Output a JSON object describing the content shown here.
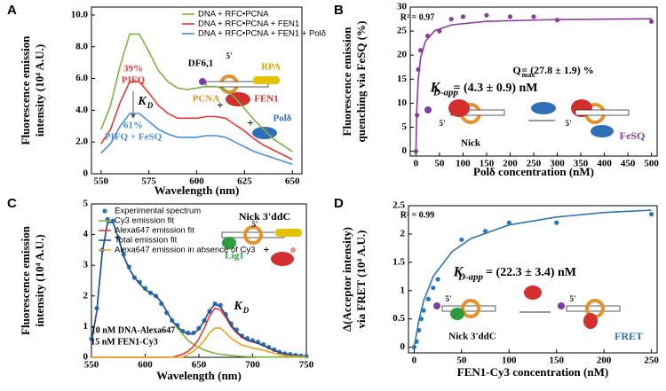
{
  "chart_data": [
    {
      "type": "line",
      "label": "A",
      "xlabel": "Wavelength (nm)",
      "ylabel": [
        "Fluorescence emission",
        "intensity (10⁴ A.U.)"
      ],
      "x": [
        550,
        555,
        560,
        565,
        570,
        575,
        580,
        585,
        590,
        595,
        600,
        605,
        610,
        615,
        620,
        625,
        630,
        635,
        640,
        645,
        650
      ],
      "series": [
        {
          "name": "DNA + RFC•PCNA",
          "color": "#7cb342",
          "mode": "line",
          "values": [
            2.8,
            4.3,
            6.8,
            8.8,
            8.8,
            7.7,
            6.5,
            5.8,
            5.4,
            5.3,
            5.4,
            5.5,
            5.5,
            5.3,
            4.8,
            4.1,
            3.4,
            2.8,
            2.2,
            1.8,
            1.4
          ]
        },
        {
          "name": "DNA + RFC•PCNA + FEN1",
          "color": "#e53935",
          "mode": "line",
          "values": [
            1.9,
            2.8,
            4.5,
            5.8,
            5.8,
            5.1,
            4.3,
            3.8,
            3.5,
            3.5,
            3.5,
            3.6,
            3.6,
            3.5,
            3.1,
            2.7,
            2.2,
            1.8,
            1.5,
            1.2,
            0.9
          ]
        },
        {
          "name": "DNA + RFC•PCNA + FEN1 + Polδ",
          "color": "#4a90d9",
          "mode": "line",
          "values": [
            1.3,
            1.9,
            3.0,
            3.8,
            3.8,
            3.3,
            2.8,
            2.5,
            2.3,
            2.3,
            2.3,
            2.4,
            2.4,
            2.3,
            2.0,
            1.7,
            1.4,
            1.2,
            1.0,
            0.8,
            0.6
          ]
        }
      ],
      "xlim": [
        545,
        655
      ],
      "xticks": [
        550,
        575,
        600,
        625,
        650
      ],
      "ylim": [
        0,
        10.5
      ],
      "yticks": [
        0,
        {
          "value": 2,
          "label": "2.0"
        },
        {
          "value": 4,
          "label": "4.0"
        },
        {
          "value": 6,
          "label": "6.0"
        },
        {
          "value": 8,
          "label": "8.0"
        },
        {
          "value": 10,
          "label": "10.0"
        }
      ],
      "legend": "upper right",
      "annotations": [
        "39%",
        "PIFQ",
        "K",
        "D",
        "61%",
        "PIFQ + FeSQ",
        "DF6,1",
        "5'",
        "RPA",
        "PCNA",
        "+",
        "FEN1",
        "+",
        "Polδ"
      ]
    },
    {
      "type": "scatter",
      "label": "B",
      "xlabel": "Polδ concentration (nM)",
      "ylabel": [
        "Fluorescence emission",
        "quenching via FeSQ (%)"
      ],
      "series": [
        {
          "color": "#8e3a9e",
          "mode": "markers",
          "x": [
            0,
            2.5,
            5,
            10,
            25,
            50,
            75,
            100,
            150,
            200,
            250,
            300,
            500
          ],
          "values": [
            0,
            7.5,
            17,
            21,
            24,
            25,
            27.5,
            28,
            28.3,
            28,
            28,
            27.3,
            27
          ]
        },
        {
          "color": "#8e3a9e",
          "mode": "line",
          "x": [
            0,
            2,
            5,
            10,
            20,
            40,
            75,
            150,
            300,
            500
          ],
          "values": [
            0,
            8.82,
            14.95,
            19.44,
            22.88,
            25.1,
            26.29,
            27.03,
            27.41,
            27.56
          ]
        }
      ],
      "xlim": [
        -12,
        512
      ],
      "xticks": [
        0,
        50,
        100,
        150,
        200,
        250,
        300,
        350,
        400,
        450,
        500
      ],
      "ylim": [
        -1,
        30
      ],
      "yticks": [
        0,
        5,
        10,
        15,
        20,
        25,
        30
      ],
      "annotations": [
        "R² = 0.97",
        "Q",
        "max",
        "= (27.8 ± 1.9) %",
        "K",
        "D-app",
        "= (4.3 ± 0.9) nM",
        "5'",
        "Nick",
        "5'",
        "FeSQ"
      ]
    },
    {
      "type": "line",
      "label": "C",
      "xlabel": "Wavelength (nm)",
      "ylabel": [
        "Fluorescence emission",
        "intensity (10⁴ A.U.)"
      ],
      "x": [
        550,
        555,
        560,
        565,
        570,
        575,
        580,
        585,
        590,
        595,
        600,
        605,
        610,
        615,
        620,
        625,
        630,
        635,
        640,
        645,
        650,
        655,
        660,
        665,
        670,
        675,
        680,
        685,
        690,
        695,
        700,
        705,
        710,
        715,
        720,
        725,
        730,
        735,
        740,
        745,
        750
      ],
      "series": [
        {
          "name": "Experimental spectrum",
          "color": "#2e75b6",
          "mode": "markers",
          "values": [
            0.6,
            1.6,
            3.5,
            4.5,
            4.45,
            3.9,
            3.35,
            2.95,
            2.6,
            2.45,
            2.25,
            2.1,
            2.0,
            1.75,
            1.45,
            1.2,
            1.05,
            0.85,
            0.8,
            0.8,
            0.95,
            1.2,
            1.5,
            1.75,
            1.7,
            1.4,
            1.1,
            0.9,
            0.7,
            0.62,
            0.55,
            0.5,
            0.42,
            0.33,
            0.25,
            0.17,
            0.12,
            0.1,
            0.07,
            0.05,
            0.04
          ]
        },
        {
          "name": "Cy3 emission fit",
          "color": "#7cb342",
          "mode": "line",
          "values": [
            0.5,
            1.5,
            3.4,
            4.4,
            4.4,
            3.9,
            3.3,
            2.9,
            2.6,
            2.4,
            2.2,
            2.1,
            2.0,
            1.8,
            1.5,
            1.2,
            0.95,
            0.75,
            0.55,
            0.42,
            0.32,
            0.24,
            0.18,
            0.13,
            0.1,
            0.08,
            0.06,
            0.04,
            0.03,
            0.02,
            0.02,
            0.01,
            0.01,
            0.01,
            0.01,
            0.01,
            0.01,
            0.01,
            0.01,
            0.01,
            0.01
          ]
        },
        {
          "name": "Alexa647 emission fit",
          "color": "#e53935",
          "mode": "line",
          "values": [
            0,
            0,
            0,
            0,
            0,
            0,
            0,
            0,
            0,
            0,
            0,
            0,
            0,
            0,
            0,
            0,
            0.05,
            0.1,
            0.2,
            0.35,
            0.6,
            0.95,
            1.35,
            1.6,
            1.55,
            1.3,
            1.0,
            0.8,
            0.65,
            0.55,
            0.5,
            0.45,
            0.38,
            0.3,
            0.22,
            0.15,
            0.1,
            0.07,
            0.05,
            0.03,
            0.02
          ]
        },
        {
          "name": "Total emission fit",
          "color": "#1f4e9c",
          "mode": "line",
          "values": [
            0.5,
            1.5,
            3.4,
            4.4,
            4.4,
            3.9,
            3.3,
            2.9,
            2.6,
            2.4,
            2.2,
            2.1,
            2.0,
            1.8,
            1.5,
            1.2,
            1.0,
            0.85,
            0.75,
            0.77,
            0.92,
            1.19,
            1.53,
            1.73,
            1.65,
            1.38,
            1.06,
            0.84,
            0.68,
            0.57,
            0.52,
            0.46,
            0.39,
            0.31,
            0.23,
            0.16,
            0.11,
            0.08,
            0.06,
            0.04,
            0.03
          ]
        },
        {
          "name": "Alexa647 emission in absence of Cy3",
          "color": "#f0a020",
          "mode": "line",
          "values": [
            0,
            0,
            0,
            0,
            0,
            0,
            0,
            0,
            0,
            0,
            0,
            0,
            0,
            0,
            0,
            0,
            0,
            0,
            0.1,
            0.2,
            0.35,
            0.55,
            0.8,
            0.95,
            0.95,
            0.8,
            0.62,
            0.5,
            0.4,
            0.35,
            0.3,
            0.27,
            0.23,
            0.18,
            0.13,
            0.09,
            0.06,
            0.04,
            0.03,
            0.02,
            0.01
          ]
        }
      ],
      "xlim": [
        550,
        750
      ],
      "xticks": [
        550,
        600,
        650,
        700,
        750
      ],
      "ylim": [
        0,
        5
      ],
      "yticks": [
        0,
        1,
        2,
        3,
        4,
        5
      ],
      "legend": "upper left",
      "annotations": [
        "Nick 3'ddC",
        "5'",
        "Lig1",
        "+",
        "10 nM DNA-Alexa647",
        "15 nM FEN1-Cy3",
        "K",
        "D"
      ]
    },
    {
      "type": "scatter",
      "label": "D",
      "xlabel": "FEN1-Cy3 concentration (nM)",
      "ylabel": [
        "Δ(Acceptor intensity)",
        "via FRET (10⁴ A.U.)"
      ],
      "series": [
        {
          "color": "#2e75b6",
          "mode": "markers",
          "x": [
            0,
            2.5,
            5,
            7.5,
            10,
            15,
            20,
            25,
            50,
            75,
            100,
            150,
            250
          ],
          "values": [
            0,
            0.1,
            0.3,
            0.5,
            0.65,
            0.85,
            1.05,
            1.2,
            1.9,
            2.05,
            2.2,
            2.2,
            2.35
          ]
        },
        {
          "color": "#2e75b6",
          "mode": "line",
          "x": [
            0,
            5,
            10,
            20,
            40,
            60,
            100,
            150,
            200,
            250
          ],
          "values": [
            0,
            0.48,
            0.82,
            1.25,
            1.69,
            1.92,
            2.16,
            2.3,
            2.38,
            2.42
          ]
        }
      ],
      "xlim": [
        -6,
        256
      ],
      "xticks": [
        0,
        50,
        100,
        150,
        200,
        250
      ],
      "ylim": [
        -0.1,
        2.5
      ],
      "yticks": [
        0,
        0.5,
        1,
        1.5,
        2,
        2.5
      ],
      "annotations": [
        "R² = 0.99",
        "K",
        "D-app",
        "= (22.3 ± 3.4) nM",
        "5'",
        "Nick 3'ddC",
        "5'",
        "FRET"
      ]
    }
  ]
}
